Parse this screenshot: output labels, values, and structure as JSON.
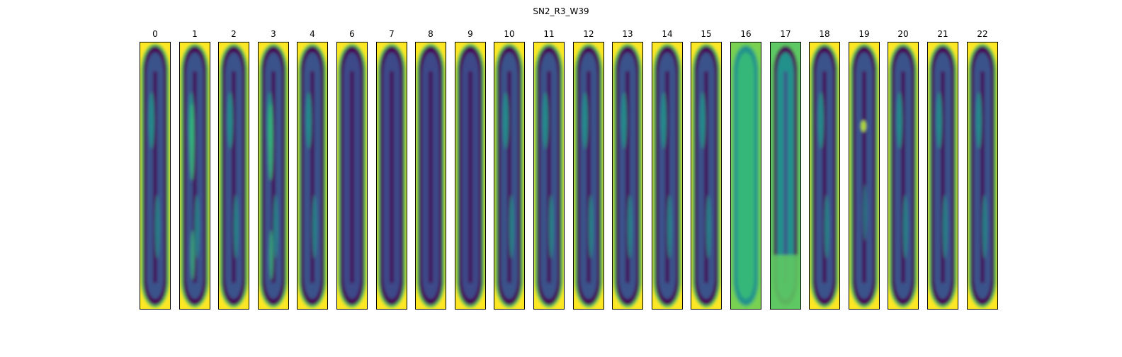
{
  "title": "SN2_R3_W39",
  "panels": [
    {
      "label": "0",
      "variant": "standard"
    },
    {
      "label": "1",
      "variant": "bright-core"
    },
    {
      "label": "2",
      "variant": "standard"
    },
    {
      "label": "3",
      "variant": "bright-core"
    },
    {
      "label": "4",
      "variant": "standard"
    },
    {
      "label": "6",
      "variant": "dark"
    },
    {
      "label": "7",
      "variant": "dark"
    },
    {
      "label": "8",
      "variant": "dark"
    },
    {
      "label": "9",
      "variant": "dark"
    },
    {
      "label": "10",
      "variant": "standard"
    },
    {
      "label": "11",
      "variant": "standard"
    },
    {
      "label": "12",
      "variant": "standard"
    },
    {
      "label": "13",
      "variant": "standard"
    },
    {
      "label": "14",
      "variant": "standard"
    },
    {
      "label": "15",
      "variant": "standard"
    },
    {
      "label": "16",
      "variant": "diffuse-bright"
    },
    {
      "label": "17",
      "variant": "diffuse"
    },
    {
      "label": "18",
      "variant": "standard"
    },
    {
      "label": "19",
      "variant": "bright-spot"
    },
    {
      "label": "20",
      "variant": "standard"
    },
    {
      "label": "21",
      "variant": "standard"
    },
    {
      "label": "22",
      "variant": "standard"
    }
  ],
  "colormap": {
    "background": "#fde725",
    "edge": "#5ec962",
    "mid": "#21918c",
    "body": "#3b528b",
    "dark": "#440154",
    "core": "#35b779"
  }
}
